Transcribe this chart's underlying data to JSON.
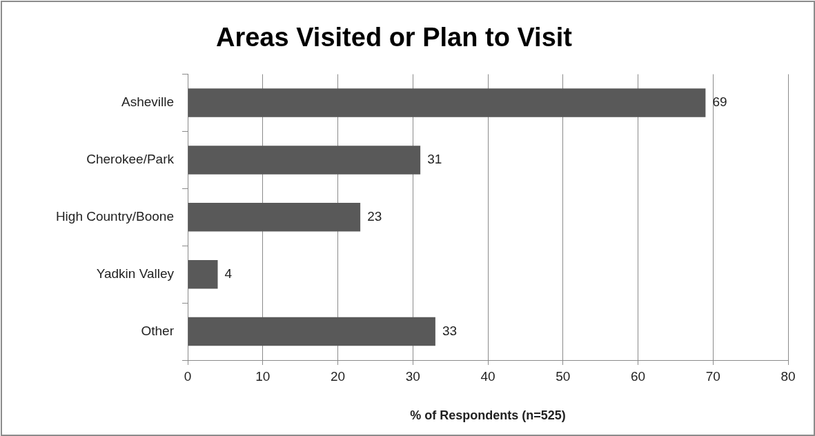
{
  "chart_data": {
    "type": "bar",
    "orientation": "horizontal",
    "title": "Areas Visited or Plan to Visit",
    "xlabel": "% of Respondents (n=525)",
    "categories": [
      "Asheville",
      "Cherokee/Park",
      "High Country/Boone",
      "Yadkin Valley",
      "Other"
    ],
    "values": [
      69,
      31,
      23,
      4,
      33
    ],
    "color": "#595959",
    "xlim": [
      0,
      80
    ],
    "xticks": [
      0,
      10,
      20,
      30,
      40,
      50,
      60,
      70,
      80
    ],
    "grid": "x",
    "legend": false,
    "data_labels": true
  }
}
